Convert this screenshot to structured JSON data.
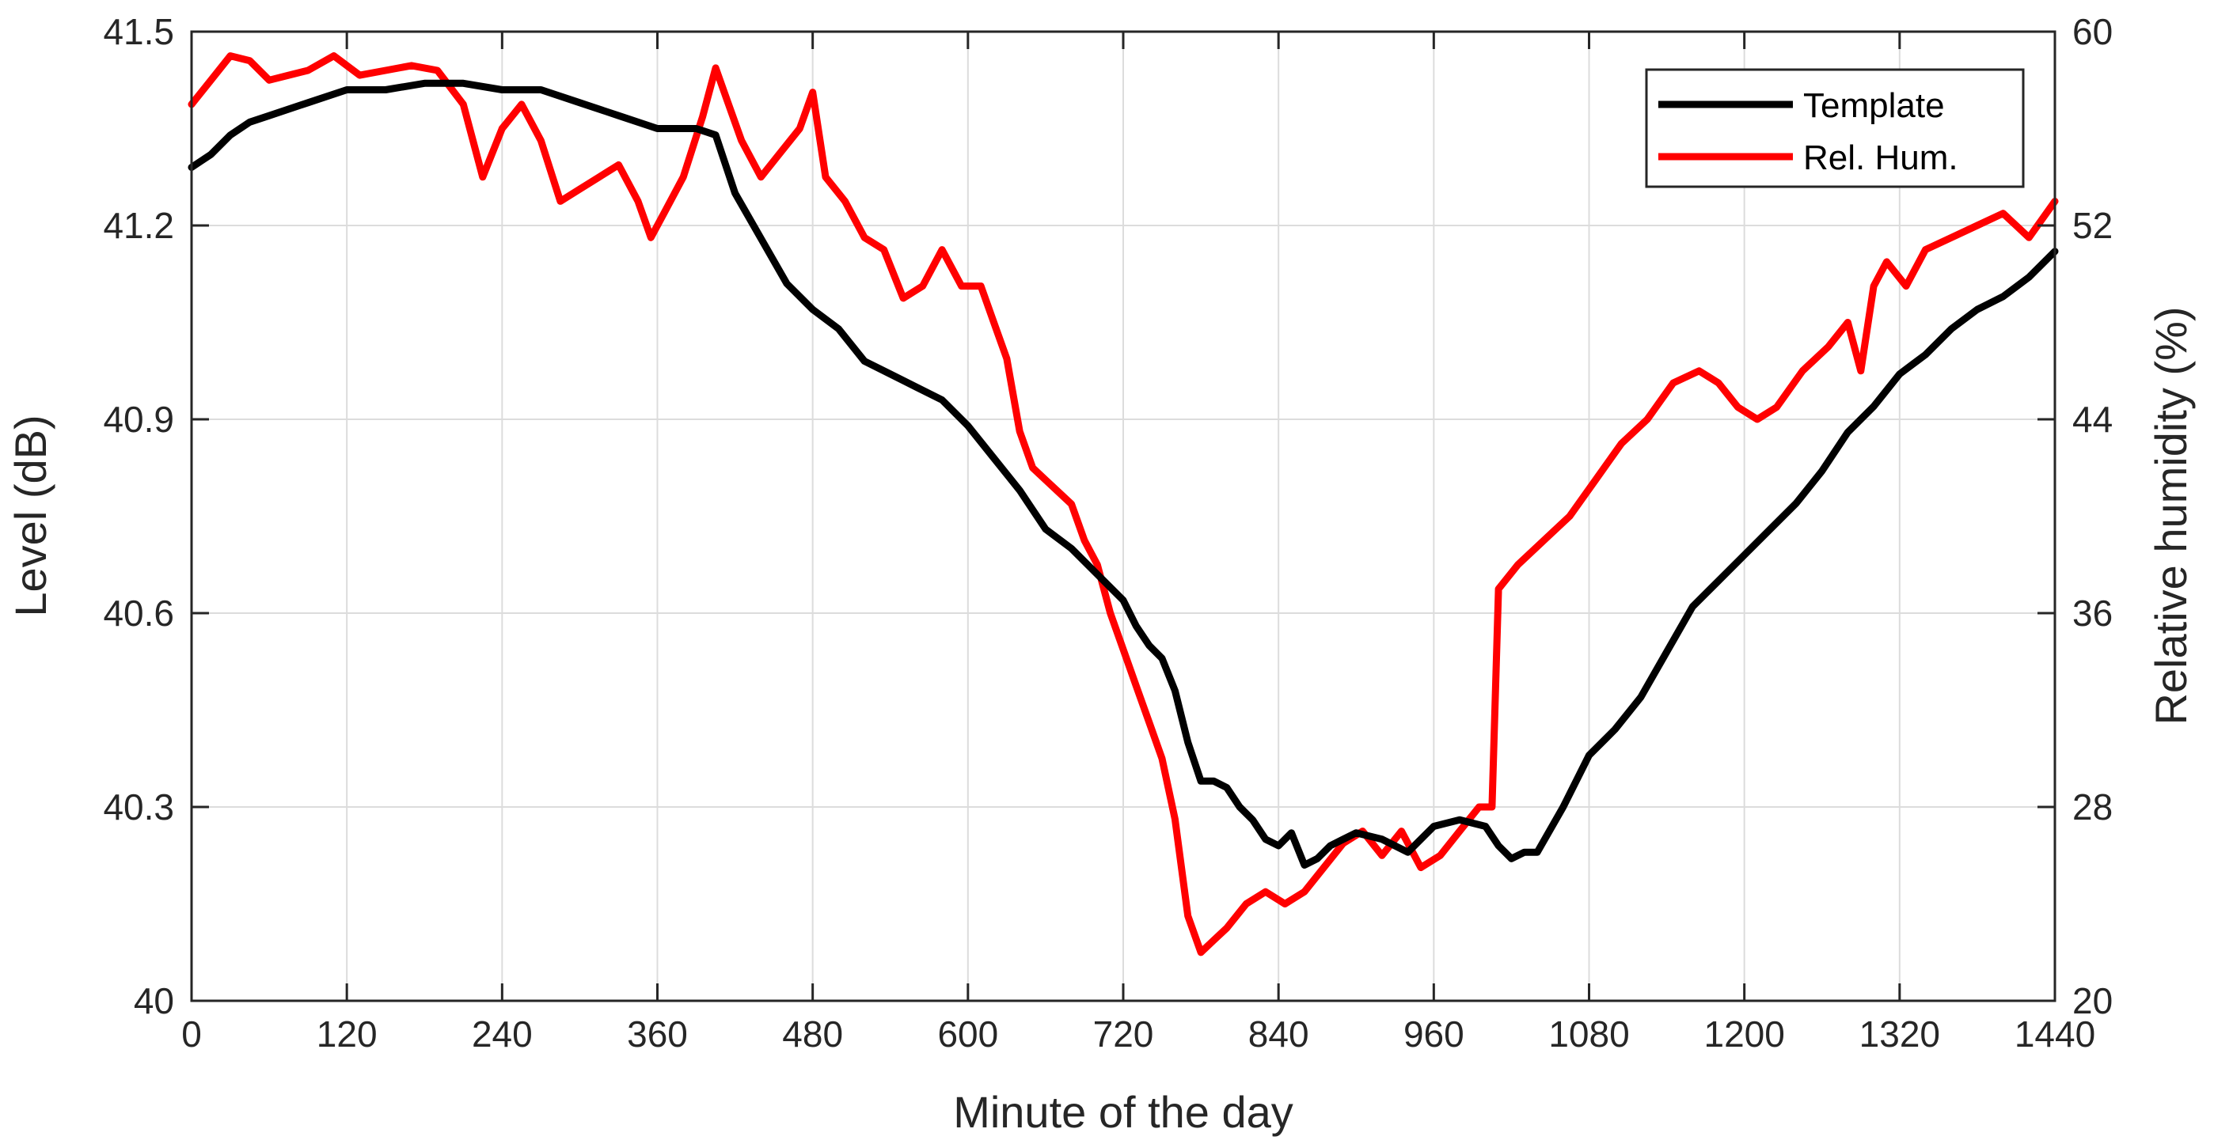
{
  "chart_data": {
    "type": "line",
    "xlabel": "Minute of the day",
    "ylabel_left": "Level (dB)",
    "ylabel_right": "Relative humidity (%)",
    "xlim": [
      0,
      1440
    ],
    "ylim_left": [
      40,
      41.5
    ],
    "ylim_right": [
      20,
      60
    ],
    "x_ticks": [
      0,
      120,
      240,
      360,
      480,
      600,
      720,
      840,
      960,
      1080,
      1200,
      1320,
      1440
    ],
    "x_tick_labels": [
      "0",
      "120",
      "240",
      "360",
      "480",
      "600",
      "720",
      "840",
      "960",
      "1080",
      "1200",
      "1320",
      "1440"
    ],
    "y_left_ticks": [
      40,
      40.3,
      40.6,
      40.9,
      41.2,
      41.5
    ],
    "y_left_tick_labels": [
      "40",
      "40.3",
      "40.6",
      "40.9",
      "41.2",
      "41.5"
    ],
    "y_right_ticks": [
      20,
      28,
      36,
      44,
      52,
      60
    ],
    "y_right_tick_labels": [
      "20",
      "28",
      "36",
      "44",
      "52",
      "60"
    ],
    "grid": true,
    "legend_position": "top-right",
    "colors": {
      "template": "#000000",
      "humidity": "#ff0000"
    },
    "series": [
      {
        "name": "Template",
        "axis": "left",
        "x": [
          0,
          15,
          30,
          45,
          60,
          90,
          120,
          150,
          180,
          210,
          240,
          270,
          300,
          330,
          360,
          390,
          405,
          420,
          440,
          460,
          480,
          500,
          520,
          540,
          560,
          580,
          600,
          620,
          640,
          660,
          680,
          700,
          720,
          730,
          740,
          750,
          760,
          770,
          780,
          790,
          800,
          810,
          820,
          830,
          840,
          850,
          860,
          870,
          880,
          890,
          900,
          920,
          940,
          960,
          980,
          1000,
          1010,
          1020,
          1030,
          1040,
          1060,
          1080,
          1100,
          1120,
          1140,
          1160,
          1180,
          1200,
          1220,
          1240,
          1260,
          1280,
          1300,
          1320,
          1340,
          1360,
          1380,
          1400,
          1420,
          1440
        ],
        "values": [
          41.29,
          41.31,
          41.34,
          41.36,
          41.37,
          41.39,
          41.41,
          41.41,
          41.42,
          41.42,
          41.41,
          41.41,
          41.39,
          41.37,
          41.35,
          41.35,
          41.34,
          41.25,
          41.18,
          41.11,
          41.07,
          41.04,
          40.99,
          40.97,
          40.95,
          40.93,
          40.89,
          40.84,
          40.79,
          40.73,
          40.7,
          40.66,
          40.62,
          40.58,
          40.55,
          40.53,
          40.48,
          40.4,
          40.34,
          40.34,
          40.33,
          40.3,
          40.28,
          40.25,
          40.24,
          40.26,
          40.21,
          40.22,
          40.24,
          40.25,
          40.26,
          40.25,
          40.23,
          40.27,
          40.28,
          40.27,
          40.24,
          40.22,
          40.23,
          40.23,
          40.3,
          40.38,
          40.42,
          40.47,
          40.54,
          40.61,
          40.65,
          40.69,
          40.73,
          40.77,
          40.82,
          40.88,
          40.92,
          40.97,
          41.0,
          41.04,
          41.07,
          41.09,
          41.12,
          41.16
        ]
      },
      {
        "name": "Rel. Hum.",
        "axis": "right",
        "x": [
          0,
          15,
          30,
          45,
          60,
          75,
          90,
          110,
          130,
          150,
          170,
          190,
          210,
          225,
          240,
          255,
          270,
          285,
          300,
          315,
          330,
          345,
          355,
          365,
          380,
          395,
          405,
          415,
          425,
          440,
          455,
          470,
          480,
          490,
          505,
          520,
          535,
          550,
          565,
          580,
          595,
          610,
          620,
          630,
          640,
          650,
          660,
          670,
          680,
          690,
          700,
          710,
          720,
          730,
          740,
          750,
          760,
          770,
          780,
          790,
          800,
          815,
          830,
          845,
          860,
          875,
          890,
          905,
          920,
          935,
          950,
          965,
          980,
          995,
          1005,
          1010,
          1025,
          1045,
          1065,
          1085,
          1105,
          1125,
          1145,
          1165,
          1180,
          1195,
          1210,
          1225,
          1245,
          1265,
          1280,
          1290,
          1300,
          1310,
          1325,
          1340,
          1360,
          1380,
          1400,
          1420,
          1440
        ],
        "values": [
          57.0,
          58.0,
          59.0,
          58.8,
          58.0,
          58.2,
          58.4,
          59.0,
          58.2,
          58.4,
          58.6,
          58.4,
          57.0,
          54.0,
          56.0,
          57.0,
          55.5,
          53.0,
          53.5,
          54.0,
          54.5,
          53.0,
          51.5,
          52.5,
          54.0,
          56.5,
          58.5,
          57.0,
          55.5,
          54.0,
          55.0,
          56.0,
          57.5,
          54.0,
          53.0,
          51.5,
          51.0,
          49.0,
          49.5,
          51.0,
          49.5,
          49.5,
          48.0,
          46.5,
          43.5,
          42.0,
          41.5,
          41.0,
          40.5,
          39.0,
          38.0,
          36.0,
          34.5,
          33.0,
          31.5,
          30.0,
          27.5,
          23.5,
          22.0,
          22.5,
          23.0,
          24.0,
          24.5,
          24.0,
          24.5,
          25.5,
          26.5,
          27.0,
          26.0,
          27.0,
          25.5,
          26.0,
          27.0,
          28.0,
          28.0,
          37.0,
          38.0,
          39.0,
          40.0,
          41.5,
          43.0,
          44.0,
          45.5,
          46.0,
          45.5,
          44.5,
          44.0,
          44.5,
          46.0,
          47.0,
          48.0,
          46.0,
          49.5,
          50.5,
          49.5,
          51.0,
          51.5,
          52.0,
          52.5,
          51.5,
          53.0
        ]
      }
    ]
  }
}
